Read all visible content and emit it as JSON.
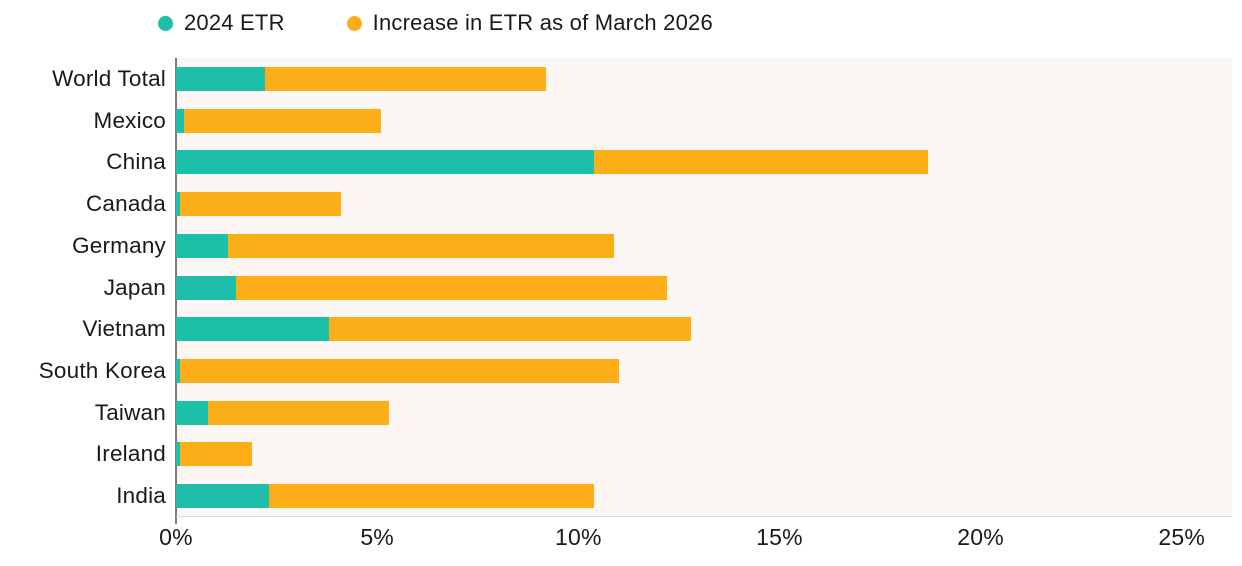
{
  "colors": {
    "teal": "#1ebfa9",
    "orange": "#fbae17",
    "plot_background": "#fbf5f3",
    "axis_line": "#7c7c7c",
    "baseline": "#d9d9d9",
    "text": "#1a1a1a"
  },
  "legend": [
    {
      "label": "2024 ETR",
      "color": "#1ebfa9"
    },
    {
      "label": "Increase in ETR as of March 2026",
      "color": "#fbae17"
    }
  ],
  "chart_data": {
    "type": "bar",
    "orientation": "horizontal",
    "stacked": true,
    "title": "",
    "xlabel": "",
    "ylabel": "",
    "categories": [
      "World Total",
      "Mexico",
      "China",
      "Canada",
      "Germany",
      "Japan",
      "Vietnam",
      "South Korea",
      "Taiwan",
      "Ireland",
      "India"
    ],
    "series": [
      {
        "name": "2024 ETR",
        "color": "#1ebfa9",
        "values": [
          2.2,
          0.2,
          10.4,
          0.1,
          1.3,
          1.5,
          3.8,
          0.1,
          0.8,
          0.1,
          2.3
        ]
      },
      {
        "name": "Increase in ETR as of March 2026",
        "color": "#fbae17",
        "values": [
          7.0,
          4.9,
          8.3,
          4.0,
          9.6,
          10.7,
          9.0,
          10.9,
          4.5,
          1.8,
          8.1
        ]
      }
    ],
    "stacked_totals": [
      9.2,
      5.1,
      18.7,
      4.1,
      10.9,
      12.2,
      12.8,
      11.0,
      5.3,
      1.9,
      10.4
    ],
    "x_ticks": [
      "0%",
      "5%",
      "10%",
      "15%",
      "20%",
      "25%"
    ],
    "x_tick_values": [
      0,
      5,
      10,
      15,
      20,
      25
    ],
    "xlim": [
      0,
      26.25
    ],
    "grid": false,
    "legend_position": "top"
  }
}
